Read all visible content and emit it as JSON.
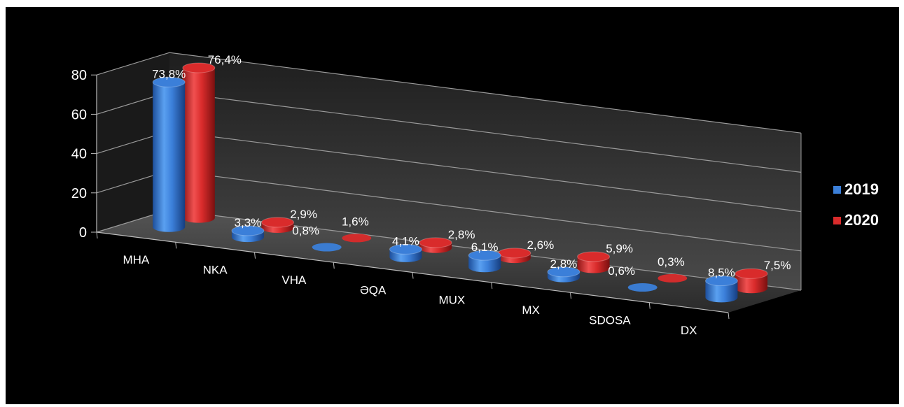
{
  "chart_data": {
    "type": "bar",
    "style": "3d-cylinder",
    "title": "",
    "xlabel": "",
    "ylabel": "",
    "ylim": [
      0,
      80
    ],
    "yticks": [
      0,
      20,
      40,
      60,
      80
    ],
    "grid": true,
    "legend_position": "right",
    "categories": [
      "MHA",
      "NKA",
      "VHA",
      "ƏQA",
      "MUX",
      "MX",
      "SDOSA",
      "DX"
    ],
    "series": [
      {
        "name": "2019",
        "color": "#3b7fd9",
        "values": [
          73.8,
          3.3,
          0.8,
          4.1,
          6.1,
          2.8,
          0.6,
          8.5
        ],
        "labels": [
          "73,8%",
          "3,3%",
          "0,8%",
          "4,1%",
          "6,1%",
          "2,8%",
          "0,6%",
          "8,5%"
        ]
      },
      {
        "name": "2020",
        "color": "#d92b2b",
        "values": [
          76.4,
          2.9,
          1.6,
          2.8,
          2.6,
          5.9,
          0.3,
          7.5
        ],
        "labels": [
          "76,4%",
          "2,9%",
          "1,6%",
          "2,8%",
          "2,6%",
          "5,9%",
          "0,3%",
          "7,5%"
        ]
      }
    ]
  }
}
